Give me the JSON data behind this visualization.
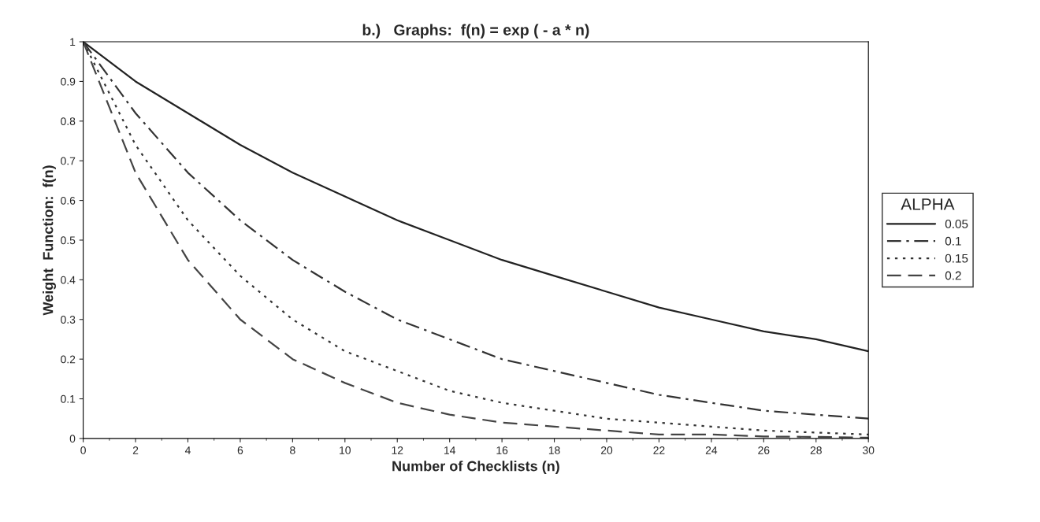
{
  "chart_data": {
    "type": "line",
    "title": "b.)   Graphs:  f(n) = exp ( - a * n)",
    "xlabel": "Number of Checklists (n)",
    "ylabel": "Weight  Function:  f(n)",
    "legend_title": "ALPHA",
    "legend": "right",
    "grid": false,
    "marker": "none",
    "x": [
      0,
      2,
      4,
      6,
      8,
      10,
      12,
      14,
      16,
      18,
      20,
      22,
      24,
      26,
      28,
      30
    ],
    "xlim": [
      0,
      30
    ],
    "xticks": [
      0,
      2,
      4,
      6,
      8,
      10,
      12,
      14,
      16,
      18,
      20,
      22,
      24,
      26,
      28,
      30
    ],
    "ylim": [
      0,
      1
    ],
    "yticks": [
      0,
      0.1,
      0.2,
      0.3,
      0.4,
      0.5,
      0.6,
      0.7,
      0.8,
      0.9,
      1
    ],
    "series": [
      {
        "name": "0.05",
        "color": "#222222",
        "line_style": "solid",
        "values": [
          1,
          0.9,
          0.82,
          0.74,
          0.67,
          0.61,
          0.55,
          0.5,
          0.45,
          0.41,
          0.37,
          0.33,
          0.3,
          0.27,
          0.25,
          0.22
        ]
      },
      {
        "name": "0.1",
        "color": "#333333",
        "line_style": "dashdot",
        "values": [
          1,
          0.82,
          0.67,
          0.55,
          0.45,
          0.37,
          0.3,
          0.25,
          0.2,
          0.17,
          0.14,
          0.11,
          0.09,
          0.07,
          0.06,
          0.05
        ]
      },
      {
        "name": "0.15",
        "color": "#333333",
        "line_style": "dotted",
        "values": [
          1,
          0.74,
          0.55,
          0.41,
          0.3,
          0.22,
          0.17,
          0.12,
          0.09,
          0.07,
          0.05,
          0.04,
          0.03,
          0.02,
          0.015,
          0.01
        ]
      },
      {
        "name": "0.2",
        "color": "#444444",
        "line_style": "dashed",
        "values": [
          1,
          0.67,
          0.45,
          0.3,
          0.2,
          0.14,
          0.09,
          0.06,
          0.04,
          0.03,
          0.02,
          0.01,
          0.01,
          0.005,
          0.004,
          0.002
        ]
      }
    ]
  }
}
